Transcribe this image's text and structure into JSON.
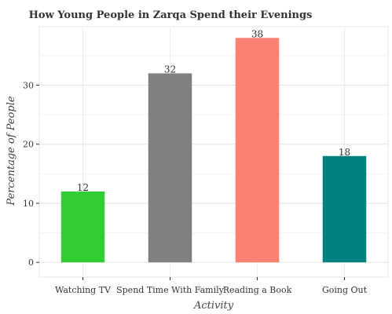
{
  "chart_data": {
    "type": "bar",
    "title": "How Young People in Zarqa Spend their Evenings",
    "xlabel": "Activity",
    "ylabel": "Percentage of People",
    "categories": [
      "Watching TV",
      "Spend Time With Family",
      "Reading a Book",
      "Going Out"
    ],
    "values": [
      12,
      32,
      38,
      18
    ],
    "colors": [
      "#32cd32",
      "#808080",
      "#fa8072",
      "#008080"
    ],
    "ylim": [
      -2.5,
      39.9
    ],
    "yticks": [
      0,
      10,
      20,
      30
    ],
    "grid": true,
    "legend": "none"
  }
}
